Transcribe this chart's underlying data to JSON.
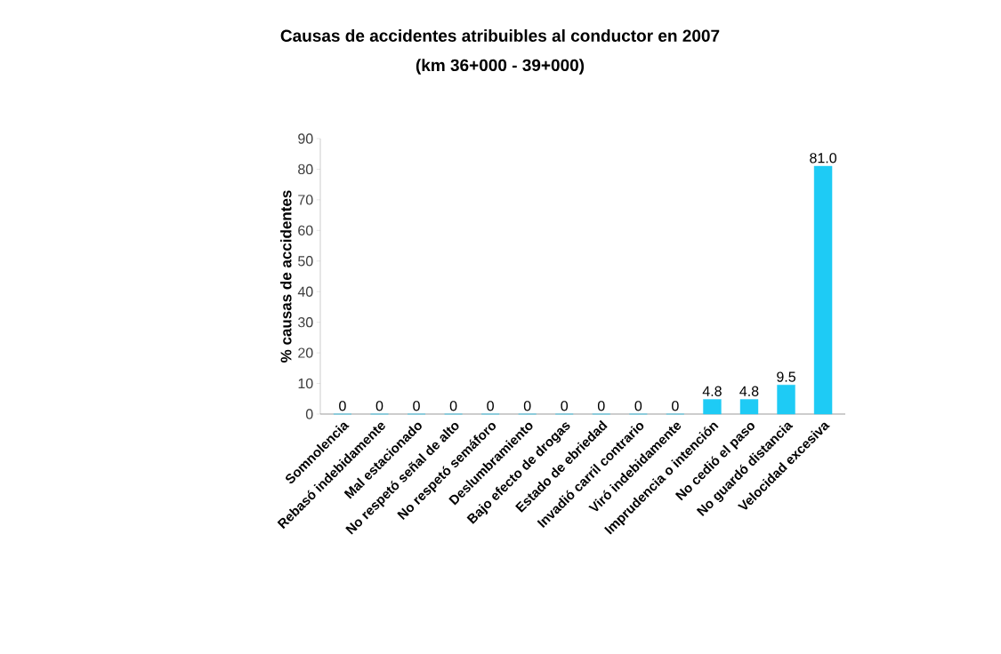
{
  "chart_data": {
    "type": "bar",
    "title": "Causas de accidentes atribuibles al conductor en 2007",
    "subtitle": "(km 36+000 - 39+000)",
    "ylabel": "% causas de accidentes",
    "categories": [
      "Somnolencia",
      "Rebasó indebidamente",
      "Mal estacionado",
      "No respetó señal de alto",
      "No respetó semáforo",
      "Deslumbramiento",
      "Bajo efecto de drogas",
      "Estado de ebriedad",
      "Invadió carril contrario",
      "Viró indebidamente",
      "Imprudencia o intención",
      "No cedió el paso",
      "No guardó distancia",
      "Velocidad excesiva"
    ],
    "values": [
      0,
      0,
      0,
      0,
      0,
      0,
      0,
      0,
      0,
      0,
      4.8,
      4.8,
      9.5,
      81.0
    ],
    "value_labels": [
      "0",
      "0",
      "0",
      "0",
      "0",
      "0",
      "0",
      "0",
      "0",
      "0",
      "4.8",
      "4.8",
      "9.5",
      "81.0"
    ],
    "color": "#1ecbf5",
    "ylim": [
      0,
      90
    ],
    "yticks": [
      0,
      10,
      20,
      30,
      40,
      50,
      60,
      70,
      80,
      90
    ],
    "grid": false
  }
}
